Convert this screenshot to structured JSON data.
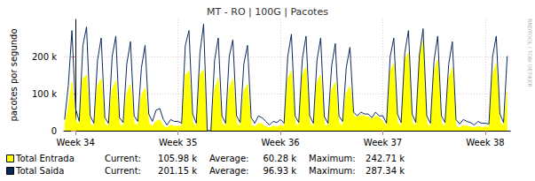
{
  "chart_data": {
    "type": "line",
    "title": "MT - RO | 100G | Pacotes",
    "y_label": "pacotes por segundo",
    "watermark": "RRDTOOL / TOBI OETIKER",
    "stats_labels": [
      "Current:",
      "Average:",
      "Maximum:"
    ],
    "x": [
      -0.75,
      -0.5,
      -0.25,
      0,
      0.25,
      0.5,
      0.75,
      1,
      1.25,
      1.5,
      1.75,
      2,
      2.25,
      2.5,
      2.75,
      3,
      3.25,
      3.5,
      3.75,
      4,
      4.25,
      4.5,
      4.75,
      5,
      5.25,
      5.5,
      5.75,
      6,
      6.25,
      6.5,
      6.75,
      7,
      7.25,
      7.5,
      7.75,
      8,
      8.25,
      8.5,
      8.75,
      9,
      9.25,
      9.5,
      9.75,
      10,
      10.25,
      10.5,
      10.75,
      11,
      11.25,
      11.5,
      11.75,
      12,
      12.25,
      12.5,
      12.75,
      13,
      13.25,
      13.5,
      13.75,
      14,
      14.25,
      14.5,
      14.75,
      15,
      15.25,
      15.5,
      15.75,
      16,
      16.25,
      16.5,
      16.75,
      17,
      17.25,
      17.5,
      17.75,
      18,
      18.25,
      18.5,
      18.75,
      19,
      19.25,
      19.5,
      19.75,
      20,
      20.25,
      20.5,
      20.75,
      21,
      21.25,
      21.5,
      21.75,
      22,
      22.25,
      22.5,
      22.75,
      23,
      23.25,
      23.5,
      23.75,
      24,
      24.25,
      24.5,
      24.75,
      25,
      25.25,
      25.5,
      25.75,
      26,
      26.25,
      26.5,
      26.75,
      27,
      27.25,
      27.5,
      27.75,
      28,
      28.25,
      28.5,
      28.75,
      29,
      29.25,
      29.5
    ],
    "series": [
      {
        "name": "Total Entrada",
        "color": "#ffff00",
        "type": "area",
        "stats": [
          "105.98 k",
          "60.28 k",
          "242.71 k"
        ],
        "values": [
          15000,
          60000,
          130000,
          30000,
          12000,
          140000,
          150000,
          20000,
          10000,
          120000,
          140000,
          18000,
          10000,
          110000,
          135000,
          18000,
          11000,
          100000,
          125000,
          20000,
          12000,
          95000,
          115000,
          20000,
          12000,
          25000,
          30000,
          12000,
          8000,
          15000,
          12000,
          12000,
          10000,
          150000,
          160000,
          22000,
          10000,
          150000,
          165000,
          0,
          0,
          110000,
          140000,
          20000,
          10000,
          115000,
          140000,
          20000,
          11000,
          105000,
          125000,
          15000,
          10000,
          20000,
          18000,
          10000,
          8000,
          12000,
          10000,
          15000,
          10000,
          140000,
          160000,
          20000,
          11000,
          150000,
          170000,
          20000,
          10000,
          130000,
          150000,
          18000,
          10000,
          110000,
          130000,
          20000,
          12000,
          100000,
          120000,
          40000,
          35000,
          42000,
          38000,
          38000,
          30000,
          40000,
          35000,
          25000,
          10000,
          160000,
          180000,
          22000,
          11000,
          190000,
          210000,
          22000,
          11000,
          200000,
          242710,
          20000,
          10000,
          160000,
          190000,
          20000,
          11000,
          140000,
          170000,
          12000,
          8000,
          14000,
          12000,
          10000,
          7000,
          11000,
          9000,
          10000,
          9000,
          150000,
          180000,
          22000,
          11000,
          105980
        ]
      },
      {
        "name": "Total Saida",
        "color": "#0b2a5c",
        "type": "line",
        "stats": [
          "201.15 k",
          "96.93 k",
          "287.34 k"
        ],
        "values": [
          30000,
          120000,
          270000,
          60000,
          25000,
          230000,
          280000,
          40000,
          20000,
          190000,
          250000,
          35000,
          20000,
          200000,
          255000,
          35000,
          22000,
          180000,
          240000,
          40000,
          25000,
          170000,
          230000,
          45000,
          25000,
          55000,
          60000,
          30000,
          15000,
          30000,
          25000,
          25000,
          20000,
          230000,
          270000,
          45000,
          20000,
          210000,
          287340,
          0,
          0,
          190000,
          250000,
          40000,
          20000,
          200000,
          245000,
          40000,
          22000,
          180000,
          230000,
          35000,
          20000,
          40000,
          35000,
          25000,
          15000,
          25000,
          22000,
          30000,
          20000,
          200000,
          260000,
          40000,
          22000,
          195000,
          255000,
          40000,
          20000,
          190000,
          250000,
          38000,
          20000,
          175000,
          235000,
          40000,
          25000,
          170000,
          225000,
          50000,
          40000,
          50000,
          45000,
          45000,
          35000,
          50000,
          40000,
          40000,
          20000,
          200000,
          250000,
          45000,
          22000,
          210000,
          270000,
          45000,
          22000,
          205000,
          275000,
          40000,
          20000,
          190000,
          255000,
          40000,
          22000,
          180000,
          240000,
          30000,
          18000,
          30000,
          25000,
          22000,
          15000,
          25000,
          20000,
          20000,
          18000,
          200000,
          255000,
          45000,
          22000,
          201150
        ]
      }
    ],
    "xlim": [
      -0.8,
      29.7
    ],
    "xticks": [
      {
        "value": 0,
        "label": "Week 34"
      },
      {
        "value": 7,
        "label": "Week 35"
      },
      {
        "value": 14,
        "label": "Week 36"
      },
      {
        "value": 21,
        "label": "Week 37"
      },
      {
        "value": 28,
        "label": "Week 38"
      }
    ],
    "ylim": [
      0,
      300000
    ],
    "yticks": [
      0,
      {
        "value": 100000,
        "label": "100 k"
      },
      {
        "value": 200000,
        "label": "200 k"
      }
    ],
    "grid": true,
    "legend": "bottom"
  }
}
